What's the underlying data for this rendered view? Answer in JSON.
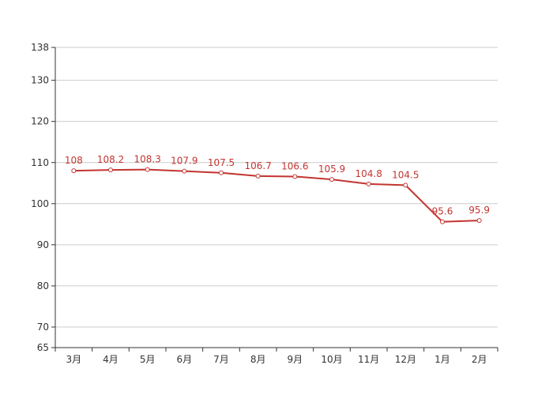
{
  "chart_data": {
    "type": "line",
    "categories": [
      "3月",
      "4月",
      "5月",
      "6月",
      "7月",
      "8月",
      "9月",
      "10月",
      "11月",
      "12月",
      "1月",
      "2月"
    ],
    "series": [
      {
        "values": [
          108,
          108.2,
          108.3,
          107.9,
          107.5,
          106.7,
          106.6,
          105.9,
          104.8,
          104.5,
          95.6,
          95.9
        ],
        "data_labels": [
          "108",
          "108.2",
          "108.3",
          "107.9",
          "107.5",
          "106.7",
          "106.6",
          "105.9",
          "104.8",
          "104.5",
          "95.6",
          "95.9"
        ]
      }
    ],
    "ylim": [
      65,
      138
    ],
    "y_ticks": [
      65,
      70,
      80,
      90,
      100,
      110,
      120,
      130,
      138
    ],
    "y_tick_labels": [
      "65",
      "70",
      "80",
      "90",
      "100",
      "110",
      "120",
      "130",
      "138"
    ],
    "title": "",
    "xlabel": "",
    "ylabel": "",
    "grid": true,
    "legend": "none",
    "colors": {
      "line": "#c23531",
      "marker_fill": "#ffffff",
      "grid": "#cccccc",
      "axis": "#333333",
      "label": "#c23531"
    }
  }
}
